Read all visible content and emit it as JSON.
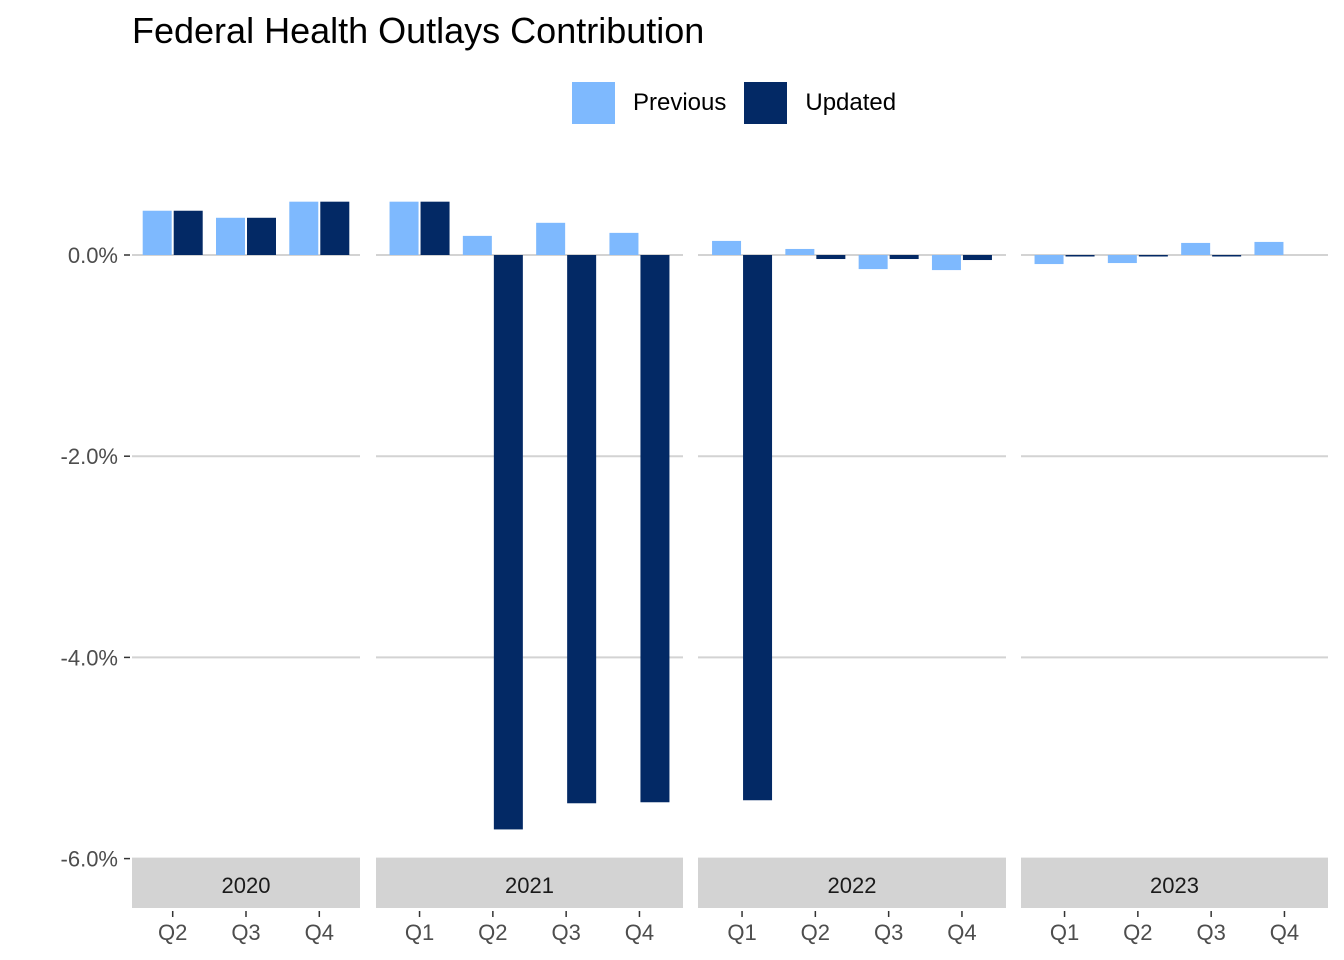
{
  "chart_data": {
    "type": "bar",
    "title": "Federal Health Outlays Contribution",
    "xlabel": "",
    "ylabel": "",
    "ylim": [
      -6.0,
      1.0
    ],
    "yticks": [
      0.0,
      -2.0,
      -4.0,
      -6.0
    ],
    "ytick_labels": [
      "0.0%",
      "-2.0%",
      "-4.0%",
      "-6.0%"
    ],
    "grid": true,
    "legend_position": "top",
    "colors": {
      "Previous": "#7eb9fe",
      "Updated": "#032965",
      "strip": "#d3d3d3",
      "grid": "#d3d3d3"
    },
    "series_names": [
      "Previous",
      "Updated"
    ],
    "panels": [
      {
        "year": "2020",
        "categories": [
          "Q2",
          "Q3",
          "Q4"
        ],
        "Previous": [
          0.44,
          0.37,
          0.53
        ],
        "Updated": [
          0.44,
          0.37,
          0.53
        ]
      },
      {
        "year": "2021",
        "categories": [
          "Q1",
          "Q2",
          "Q3",
          "Q4"
        ],
        "Previous": [
          0.53,
          0.19,
          0.32,
          0.22
        ],
        "Updated": [
          0.53,
          -5.71,
          -5.45,
          -5.44
        ]
      },
      {
        "year": "2022",
        "categories": [
          "Q1",
          "Q2",
          "Q3",
          "Q4"
        ],
        "Previous": [
          0.14,
          0.06,
          -0.14,
          -0.15
        ],
        "Updated": [
          -5.42,
          -0.04,
          -0.04,
          -0.05
        ]
      },
      {
        "year": "2023",
        "categories": [
          "Q1",
          "Q2",
          "Q3",
          "Q4"
        ],
        "Previous": [
          -0.09,
          -0.08,
          0.12,
          0.13
        ],
        "Updated": [
          -0.01,
          -0.01,
          -0.01,
          0.0
        ]
      }
    ]
  }
}
